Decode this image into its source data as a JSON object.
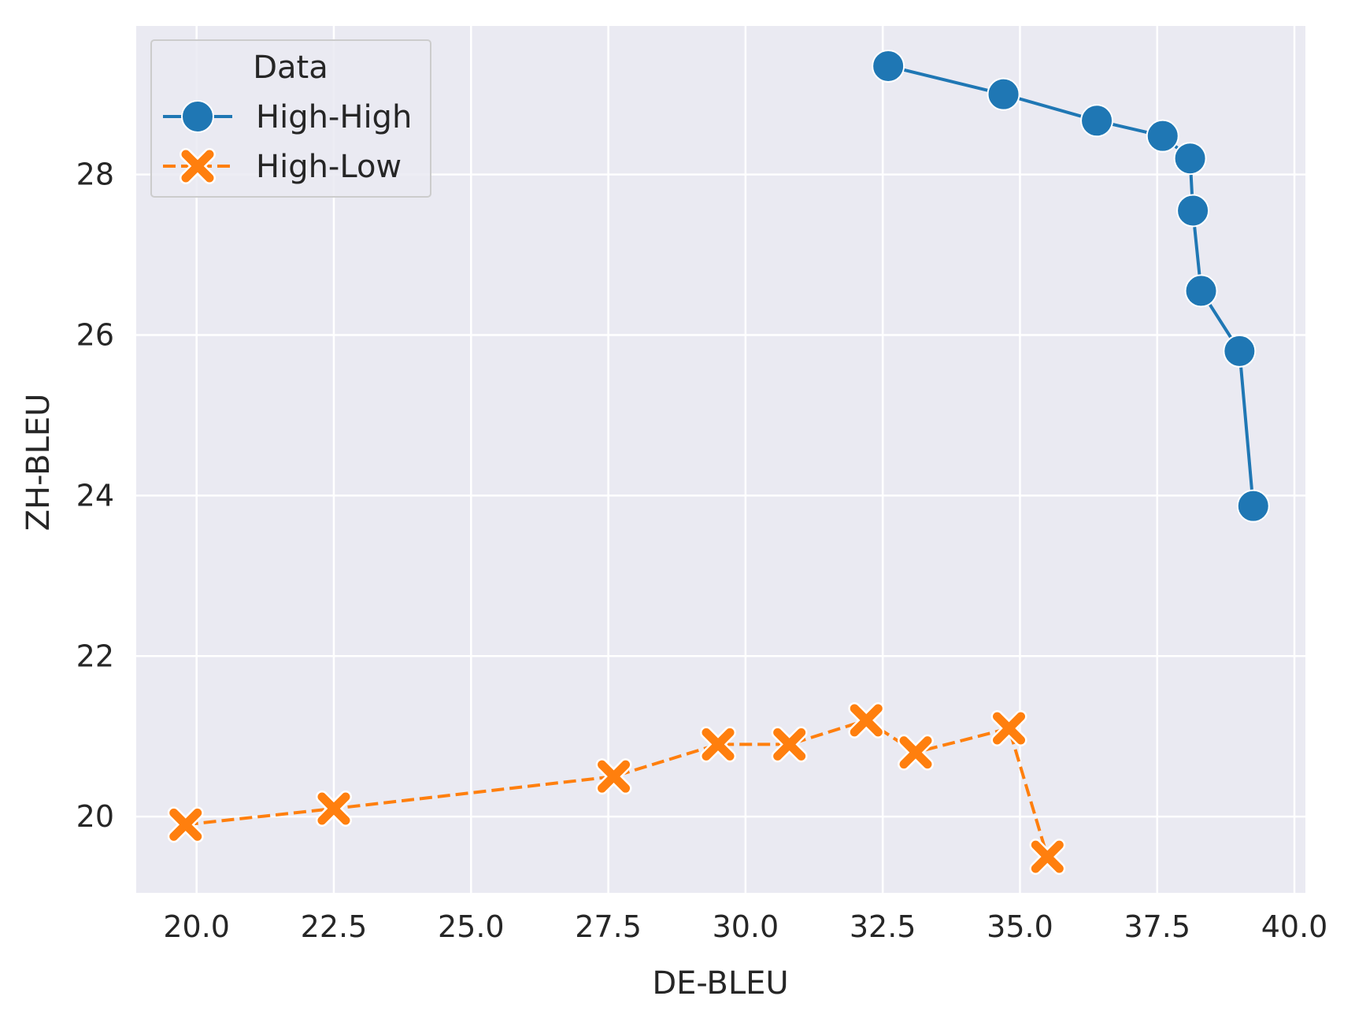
{
  "chart_data": {
    "type": "line",
    "xlabel": "DE-BLEU",
    "ylabel": "ZH-BLEU",
    "xlim": [
      18.9,
      40.2
    ],
    "ylim": [
      19.05,
      29.85
    ],
    "xticks": [
      20.0,
      22.5,
      25.0,
      27.5,
      30.0,
      32.5,
      35.0,
      37.5,
      40.0
    ],
    "yticks": [
      20,
      22,
      24,
      26,
      28
    ],
    "grid": true,
    "background": "#eaeaf2",
    "legend": {
      "title": "Data",
      "placement": "top-left"
    },
    "series": [
      {
        "name": "High-High",
        "color": "#1f77b4",
        "marker": "circle",
        "linestyle": "solid",
        "x": [
          32.6,
          34.7,
          36.4,
          37.6,
          38.1,
          38.15,
          38.3,
          39.0,
          39.25
        ],
        "y": [
          29.35,
          29.0,
          28.67,
          28.48,
          28.2,
          27.55,
          26.55,
          25.8,
          23.87
        ]
      },
      {
        "name": "High-Low",
        "color": "#ff7f0e",
        "marker": "x",
        "linestyle": "dashed",
        "x": [
          19.8,
          22.5,
          27.6,
          29.5,
          30.8,
          32.2,
          33.1,
          34.8,
          35.5
        ],
        "y": [
          19.9,
          20.1,
          20.5,
          20.9,
          20.9,
          21.2,
          20.8,
          21.1,
          19.5
        ]
      }
    ]
  }
}
